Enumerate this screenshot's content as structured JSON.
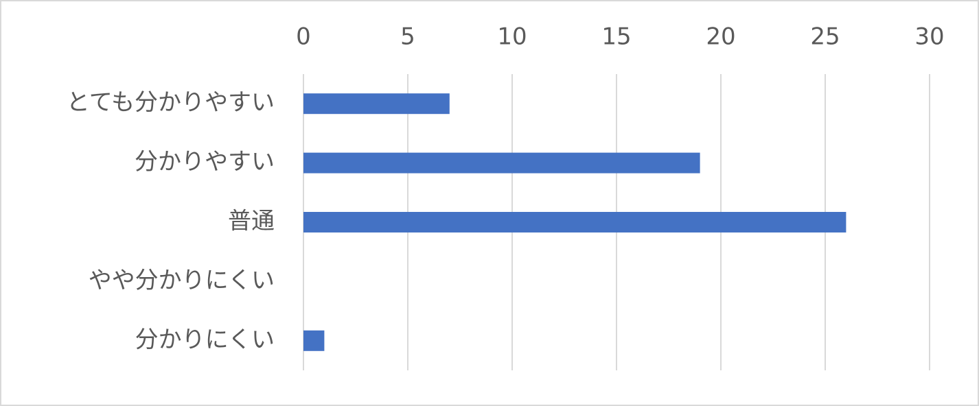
{
  "chart_data": {
    "type": "bar",
    "orientation": "horizontal",
    "categories": [
      "とても分かりやすい",
      "分かりやすい",
      "普通",
      "やや分かりにくい",
      "分かりにくい"
    ],
    "values": [
      7,
      19,
      26,
      0,
      1
    ],
    "color": "#4472c4",
    "xlim": [
      0,
      30
    ],
    "xticks": [
      0,
      5,
      10,
      15,
      20,
      25,
      30
    ],
    "grid": true
  }
}
